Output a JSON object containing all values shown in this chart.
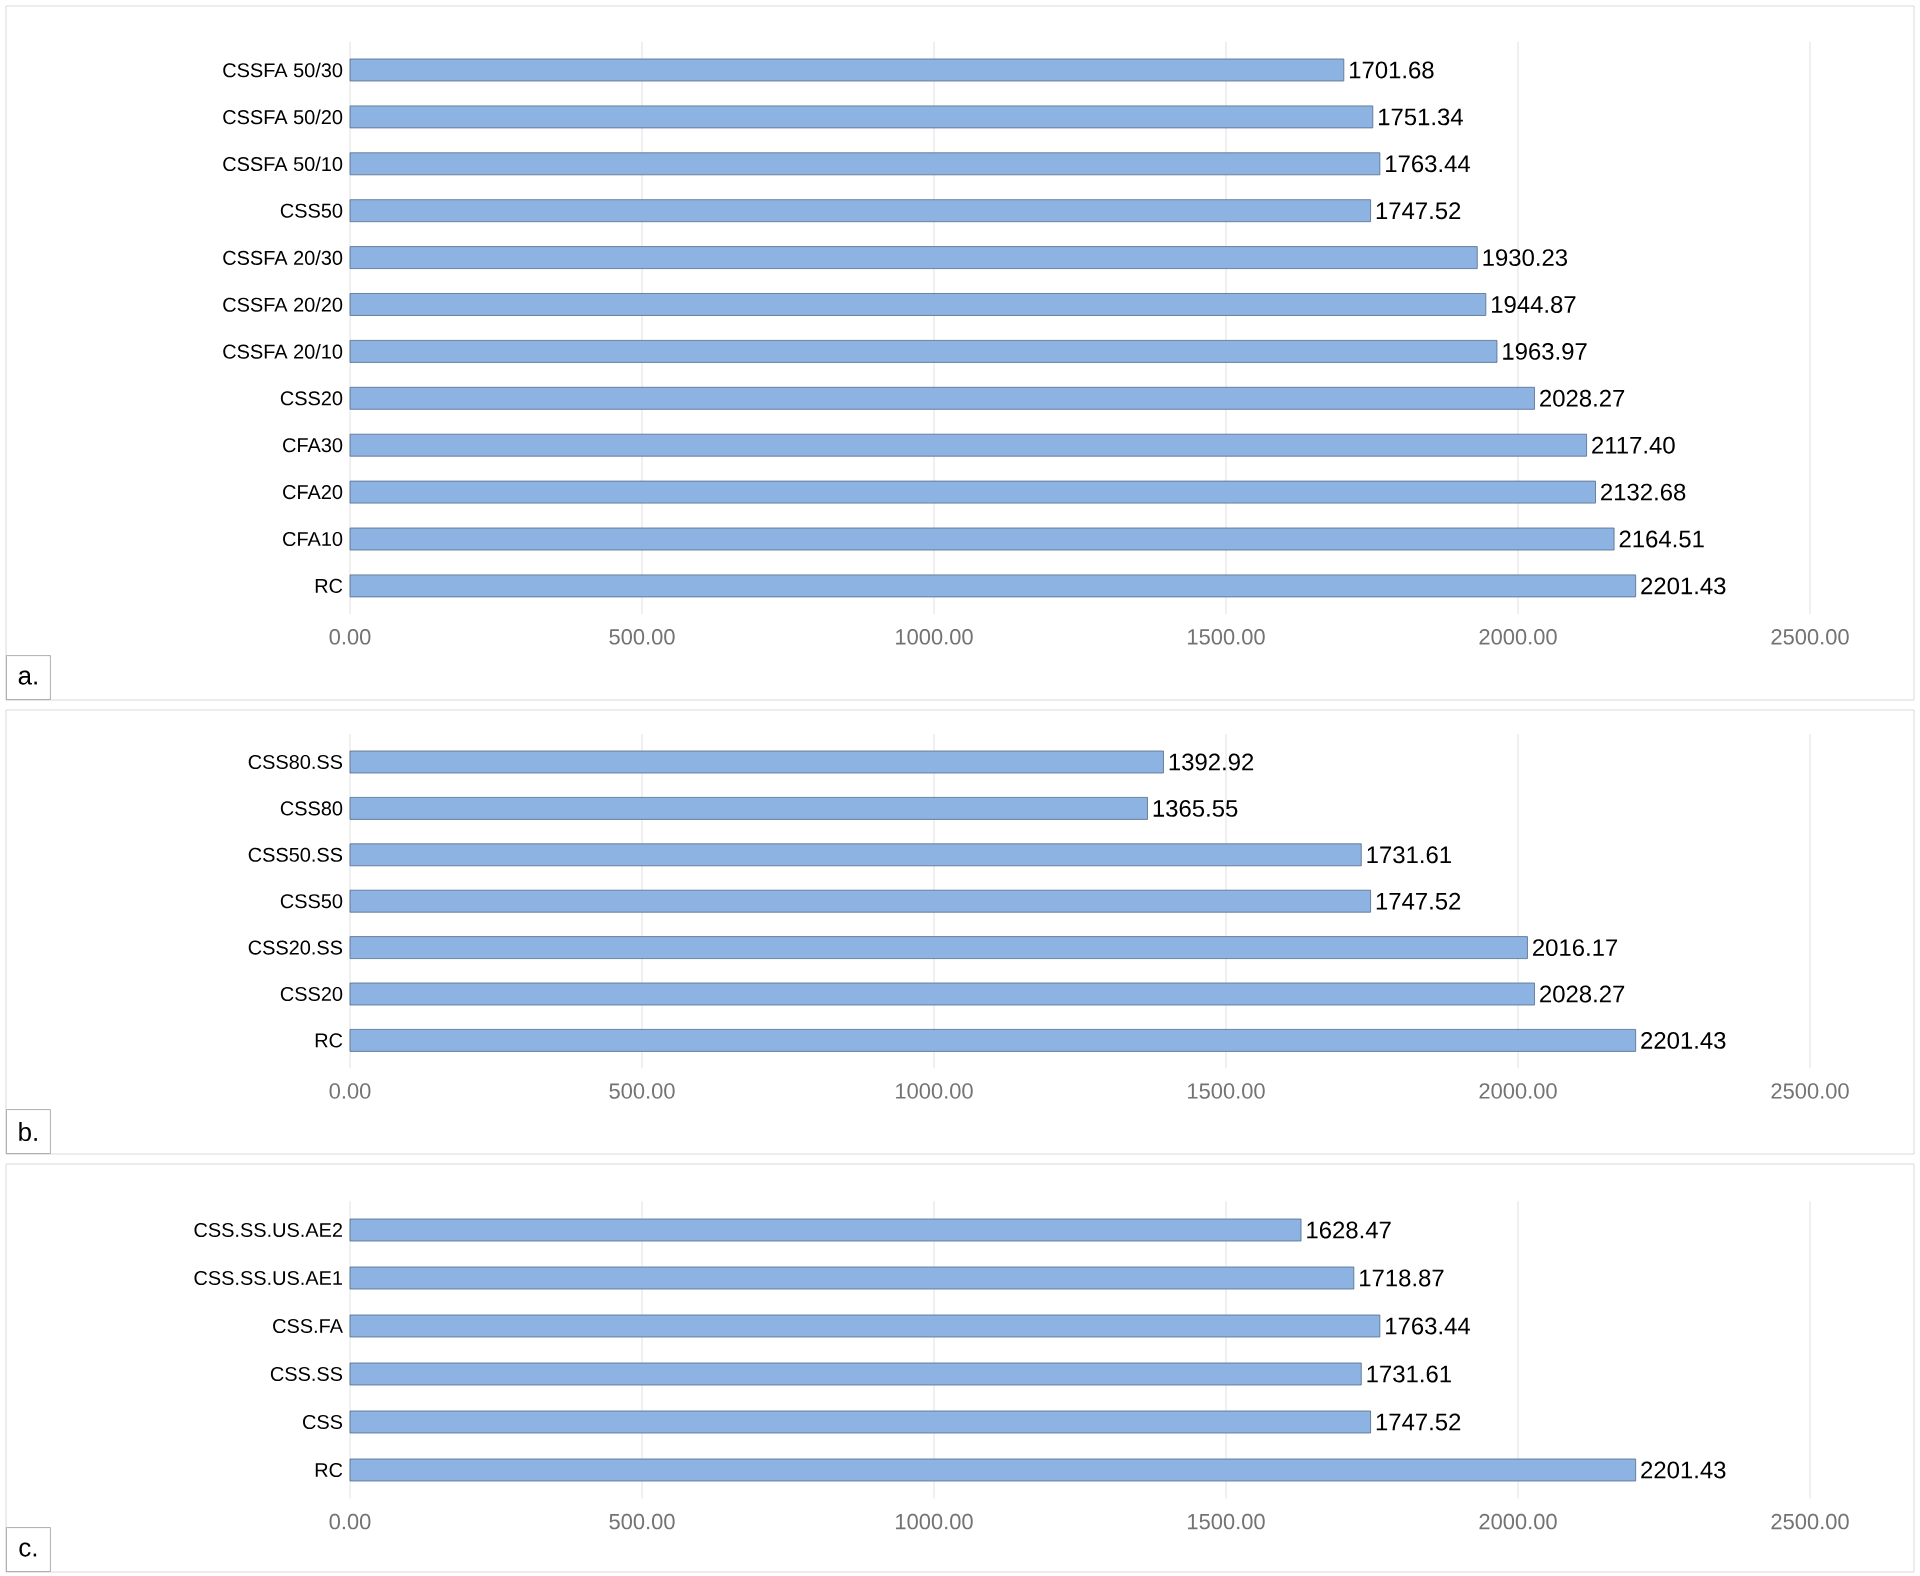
{
  "chart_data": [
    {
      "type": "bar",
      "orientation": "horizontal",
      "color": "#8db3e2",
      "grid": "x",
      "categories": [
        "CSSFA 50/30",
        "CSSFA 50/20",
        "CSSFA 50/10",
        "CSS50",
        "CSSFA 20/30",
        "CSSFA 20/20",
        "CSSFA 20/10",
        "CSS20",
        "CFA30",
        "CFA20",
        "CFA10",
        "RC"
      ],
      "values": [
        1701.68,
        1751.34,
        1763.44,
        1747.52,
        1930.23,
        1944.87,
        1963.97,
        2028.27,
        2117.4,
        2132.68,
        2164.51,
        2201.43
      ],
      "value_labels": [
        "1701.68",
        "1751.34",
        "1763.44",
        "1747.52",
        "1930.23",
        "1944.87",
        "1963.97",
        "2028.27",
        "2117.40",
        "2132.68",
        "2164.51",
        "2201.43"
      ],
      "xlim": [
        0,
        2500
      ],
      "xticks": [
        {
          "value": 0,
          "label": "0.00"
        },
        {
          "value": 500,
          "label": "500.00"
        },
        {
          "value": 1000,
          "label": "1000.00"
        },
        {
          "value": 1500,
          "label": "1500.00"
        },
        {
          "value": 2000,
          "label": "2000.00"
        },
        {
          "value": 2500,
          "label": "2500.00"
        }
      ],
      "annotations": [
        "a."
      ]
    },
    {
      "type": "bar",
      "orientation": "horizontal",
      "color": "#8db3e2",
      "grid": "x",
      "categories": [
        "CSS80.SS",
        "CSS80",
        "CSS50.SS",
        "CSS50",
        "CSS20.SS",
        "CSS20",
        "RC"
      ],
      "values": [
        1392.92,
        1365.55,
        1731.61,
        1747.52,
        2016.17,
        2028.27,
        2201.43
      ],
      "value_labels": [
        "1392.92",
        "1365.55",
        "1731.61",
        "1747.52",
        "2016.17",
        "2028.27",
        "2201.43"
      ],
      "xlim": [
        0,
        2500
      ],
      "xticks": [
        {
          "value": 0,
          "label": "0.00"
        },
        {
          "value": 500,
          "label": "500.00"
        },
        {
          "value": 1000,
          "label": "1000.00"
        },
        {
          "value": 1500,
          "label": "1500.00"
        },
        {
          "value": 2000,
          "label": "2000.00"
        },
        {
          "value": 2500,
          "label": "2500.00"
        }
      ],
      "annotations": [
        "b."
      ]
    },
    {
      "type": "bar",
      "orientation": "horizontal",
      "color": "#8db3e2",
      "grid": "x",
      "categories": [
        "CSS.SS.US.AE2",
        "CSS.SS.US.AE1",
        "CSS.FA",
        "CSS.SS",
        "CSS",
        "RC"
      ],
      "values": [
        1628.47,
        1718.87,
        1763.44,
        1731.61,
        1747.52,
        2201.43
      ],
      "value_labels": [
        "1628.47",
        "1718.87",
        "1763.44",
        "1731.61",
        "1747.52",
        "2201.43"
      ],
      "xlim": [
        0,
        2500
      ],
      "xticks": [
        {
          "value": 0,
          "label": "0.00"
        },
        {
          "value": 500,
          "label": "500.00"
        },
        {
          "value": 1000,
          "label": "1000.00"
        },
        {
          "value": 1500,
          "label": "1500.00"
        },
        {
          "value": 2000,
          "label": "2000.00"
        },
        {
          "value": 2500,
          "label": "2500.00"
        }
      ],
      "annotations": [
        "c."
      ]
    }
  ]
}
